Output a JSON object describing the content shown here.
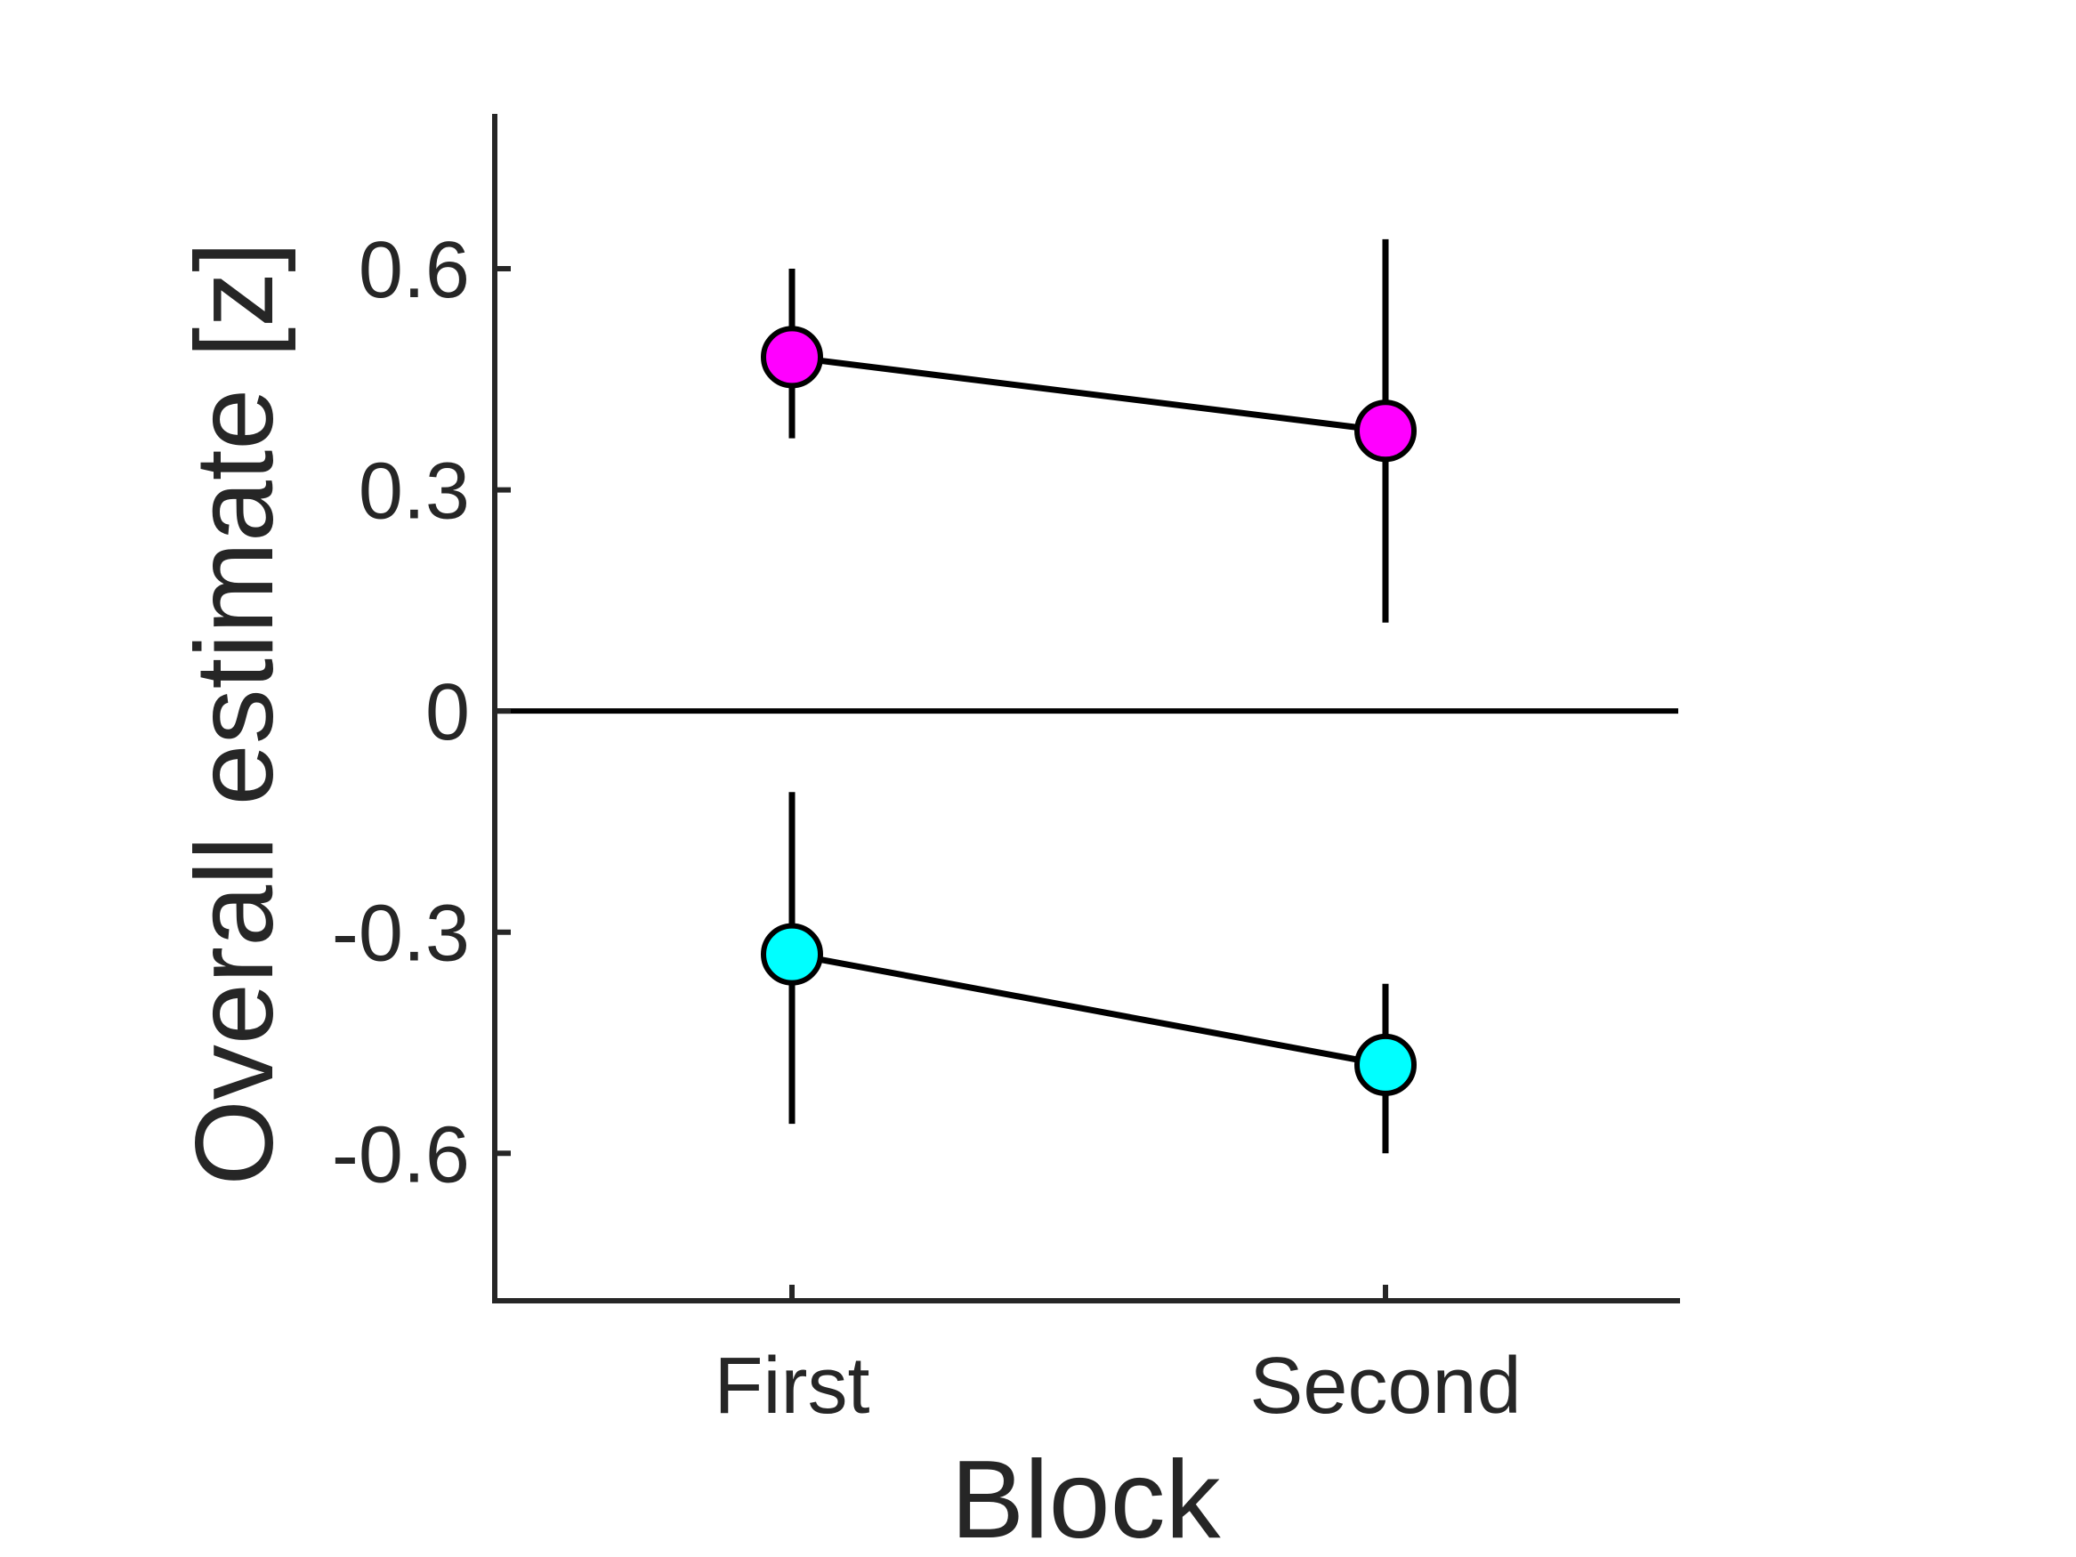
{
  "chart_data": {
    "type": "line",
    "xlabel": "Block",
    "ylabel": "Overall estimate [z]",
    "categories": [
      "First",
      "Second"
    ],
    "yticks": [
      "-0.6",
      "-0.3",
      "0",
      "0.3",
      "0.6"
    ],
    "ylim": [
      -0.8,
      0.81
    ],
    "reference_line_y": 0,
    "grid": false,
    "legend": "none",
    "series": [
      {
        "color": "#ff00ff",
        "values": [
          0.48,
          0.38
        ],
        "error_low": [
          0.37,
          0.12
        ],
        "error_high": [
          0.6,
          0.64
        ]
      },
      {
        "color": "#00ffff",
        "values": [
          -0.33,
          -0.48
        ],
        "error_low": [
          -0.56,
          -0.6
        ],
        "error_high": [
          -0.11,
          -0.37
        ]
      }
    ]
  }
}
